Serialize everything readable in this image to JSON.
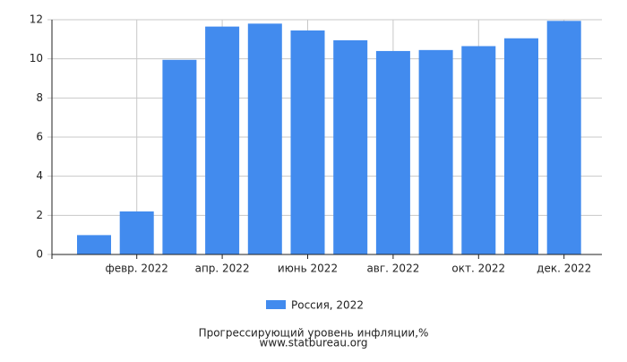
{
  "chart_data": {
    "type": "bar",
    "title": "Прогрессирующий уровень инфляции,%",
    "subtitle": "www.statbureau.org",
    "categories": [
      null,
      "февр. 2022",
      null,
      "апр. 2022",
      null,
      "июнь 2022",
      null,
      "авг. 2022",
      null,
      "окт. 2022",
      null,
      "дек. 2022"
    ],
    "series": [
      {
        "name": "Россия, 2022",
        "color": "#428bee",
        "values": [
          0.99,
          2.2,
          9.95,
          11.65,
          11.8,
          11.45,
          10.95,
          10.4,
          10.45,
          10.65,
          11.05,
          11.94
        ]
      }
    ],
    "ylim": [
      0,
      12
    ],
    "yticks": [
      0,
      2,
      4,
      6,
      8,
      10,
      12
    ],
    "grid": true
  }
}
